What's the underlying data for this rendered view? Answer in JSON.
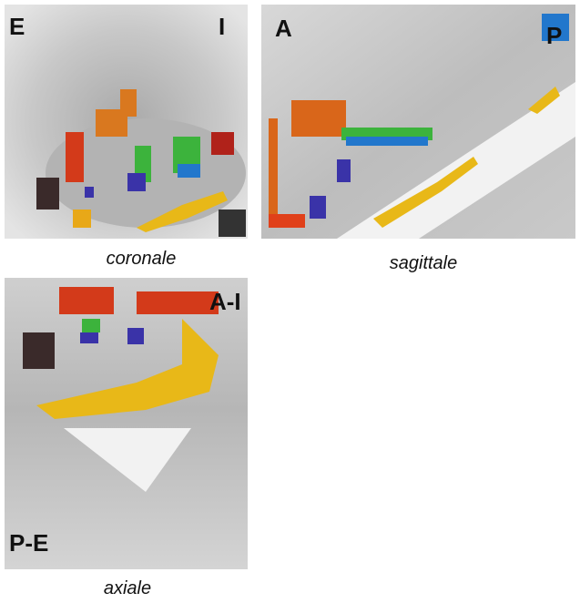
{
  "panels": [
    {
      "caption": "coronale",
      "labels": [
        "E",
        "I"
      ]
    },
    {
      "caption": "sagittale",
      "labels": [
        "A",
        "P"
      ]
    },
    {
      "caption": "axiale",
      "labels": [
        "A-I",
        "P-E"
      ]
    }
  ]
}
